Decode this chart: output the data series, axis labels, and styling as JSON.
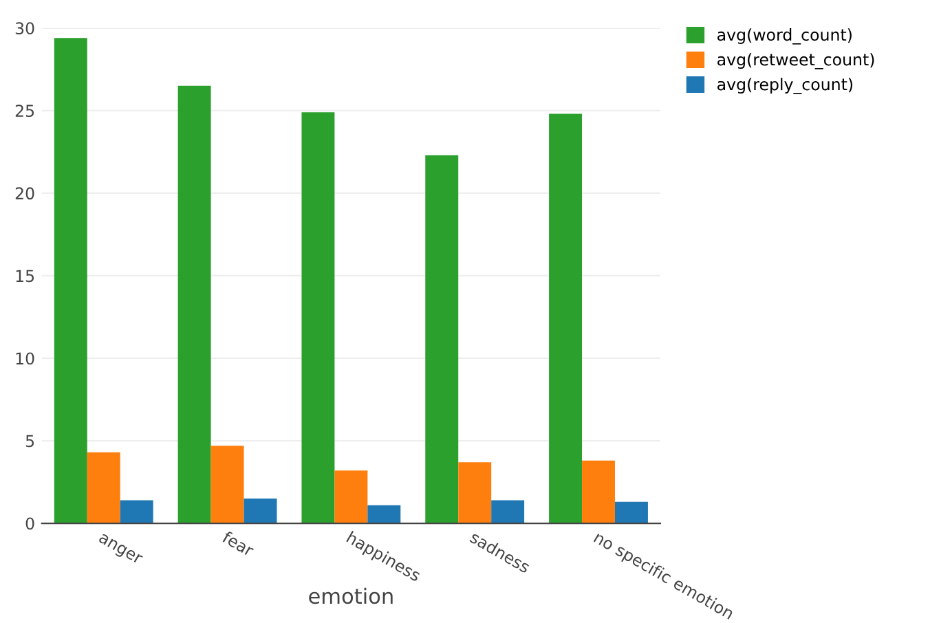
{
  "chart_data": {
    "type": "bar",
    "xlabel": "emotion",
    "categories": [
      "anger",
      "fear",
      "happiness",
      "sadness",
      "no specific emotion"
    ],
    "series": [
      {
        "name": "avg(word_count)",
        "color": "#2ca02c",
        "values": [
          29.4,
          26.5,
          24.9,
          22.3,
          24.8
        ]
      },
      {
        "name": "avg(retweet_count)",
        "color": "#ff7f0e",
        "values": [
          4.3,
          4.7,
          3.2,
          3.7,
          3.8
        ]
      },
      {
        "name": "avg(reply_count)",
        "color": "#1f77b4",
        "values": [
          1.4,
          1.5,
          1.1,
          1.4,
          1.3
        ]
      }
    ],
    "ylim": [
      0,
      30
    ],
    "yticks": [
      0,
      5,
      10,
      15,
      20,
      25,
      30
    ],
    "grid": "y",
    "legend": "top right"
  }
}
